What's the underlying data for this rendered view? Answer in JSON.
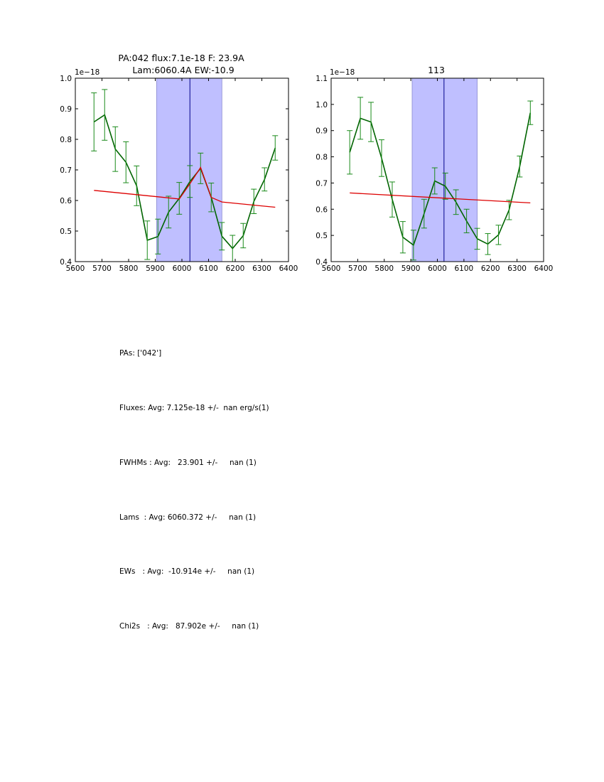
{
  "chart_data": [
    {
      "type": "line",
      "title_line1": "PA:042 flux:7.1e-18 F: 23.9A",
      "title_line2": "Lam:6060.4A EW:-10.9",
      "exponent_label": "1e−18",
      "xlim": [
        5600,
        6400
      ],
      "ylim": [
        0.4,
        1.0
      ],
      "xticks": [
        5600,
        5700,
        5800,
        5900,
        6000,
        6100,
        6200,
        6300,
        6400
      ],
      "yticks": [
        0.4,
        0.5,
        0.6,
        0.7,
        0.8,
        0.9,
        1.0
      ],
      "ytick_labels": [
        "0.4",
        "0.5",
        "0.6",
        "0.7",
        "0.8",
        "0.9",
        "1.0"
      ],
      "shaded_region": [
        5905,
        6150
      ],
      "center_line": 6030,
      "series": [
        {
          "name": "data",
          "color": "#006400",
          "x": [
            5670,
            5710,
            5750,
            5790,
            5830,
            5870,
            5910,
            5950,
            5990,
            6030,
            6070,
            6110,
            6150,
            6190,
            6230,
            6270,
            6310,
            6350
          ],
          "y": [
            0.857,
            0.88,
            0.768,
            0.725,
            0.648,
            0.47,
            0.482,
            0.562,
            0.607,
            0.662,
            0.705,
            0.61,
            0.483,
            0.443,
            0.485,
            0.597,
            0.669,
            0.772
          ],
          "err": [
            0.095,
            0.083,
            0.073,
            0.067,
            0.065,
            0.063,
            0.057,
            0.052,
            0.052,
            0.052,
            0.05,
            0.047,
            0.045,
            0.043,
            0.04,
            0.04,
            0.038,
            0.04
          ]
        },
        {
          "name": "fit",
          "color": "#dd0000",
          "x": [
            5670,
            5910,
            5990,
            6030,
            6070,
            6110,
            6150,
            6350
          ],
          "y": [
            0.633,
            0.612,
            0.605,
            0.655,
            0.708,
            0.61,
            0.595,
            0.578
          ]
        }
      ]
    },
    {
      "type": "line",
      "title_line1": "113",
      "exponent_label": "1e−18",
      "xlim": [
        5600,
        6400
      ],
      "ylim": [
        0.4,
        1.1
      ],
      "xticks": [
        5600,
        5700,
        5800,
        5900,
        6000,
        6100,
        6200,
        6300,
        6400
      ],
      "yticks": [
        0.4,
        0.5,
        0.6,
        0.7,
        0.8,
        0.9,
        1.0,
        1.1
      ],
      "ytick_labels": [
        "0.4",
        "0.5",
        "0.6",
        "0.7",
        "0.8",
        "0.9",
        "1.0",
        "1.1"
      ],
      "shaded_region": [
        5905,
        6150
      ],
      "center_line": 6025,
      "series": [
        {
          "name": "data",
          "color": "#006400",
          "x": [
            5670,
            5710,
            5750,
            5790,
            5830,
            5870,
            5910,
            5950,
            5990,
            6030,
            6070,
            6110,
            6150,
            6190,
            6230,
            6270,
            6310,
            6350
          ],
          "y": [
            0.817,
            0.947,
            0.933,
            0.795,
            0.637,
            0.493,
            0.463,
            0.583,
            0.708,
            0.688,
            0.627,
            0.555,
            0.487,
            0.467,
            0.502,
            0.597,
            0.763,
            0.968
          ],
          "err": [
            0.083,
            0.08,
            0.075,
            0.07,
            0.067,
            0.06,
            0.057,
            0.055,
            0.05,
            0.05,
            0.047,
            0.045,
            0.04,
            0.04,
            0.037,
            0.037,
            0.04,
            0.045
          ]
        },
        {
          "name": "fit",
          "color": "#dd0000",
          "x": [
            5670,
            6350
          ],
          "y": [
            0.662,
            0.624
          ]
        }
      ]
    }
  ],
  "stats": {
    "pas": "PAs: ['042']",
    "fluxes": "Fluxes: Avg: 7.125e-18 +/-  nan erg/s(1)",
    "fwhms": "FWHMs : Avg:   23.901 +/-     nan (1)",
    "lams": "Lams  : Avg: 6060.372 +/-     nan (1)",
    "ews": "EWs   : Avg:  -10.914e +/-     nan (1)",
    "chi2s": "Chi2s   : Avg:   87.902e +/-     nan (1)"
  },
  "colors": {
    "shade": "#bfbfff",
    "center": "#00008b",
    "data": "#006400",
    "errorbar": "#1a8a1a",
    "fit": "#dd0000"
  }
}
